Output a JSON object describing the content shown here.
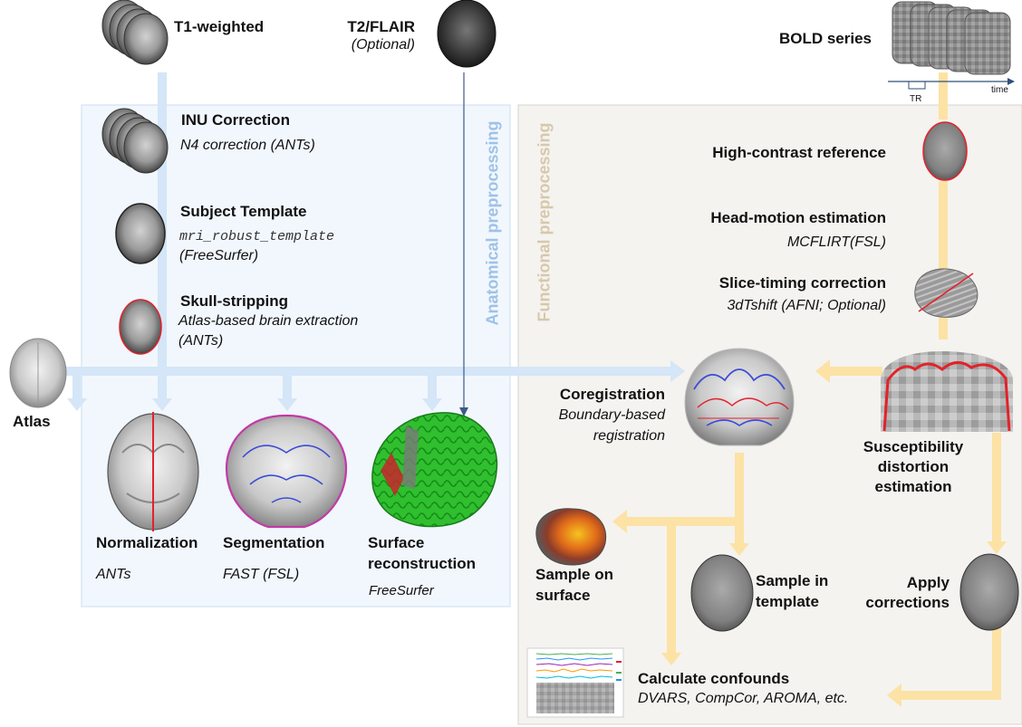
{
  "colors": {
    "anat_panel_fill": "#f1f7fd",
    "anat_panel_border": "#d3e3f4",
    "func_panel_fill": "#f4f3f0",
    "func_panel_border": "#dcdad4",
    "anat_arrow": "#d4e6f7",
    "anat_text": "#9ec2e6",
    "func_arrow": "#fde2a5",
    "func_text": "#d7c8aa",
    "mask_outline": "#e3222a",
    "wm_outline": "#3b4cd6",
    "surface_green": "#2fbf2f"
  },
  "inputs": {
    "t1_title": "T1-weighted",
    "t2_title": "T2/FLAIR",
    "t2_sub": "(Optional)",
    "bold_title": "BOLD series",
    "tr_label": "TR",
    "time_label": "time",
    "atlas_title": "Atlas"
  },
  "anatomical": {
    "panel_title": "Anatomical preprocessing",
    "inu_title": "INU Correction",
    "inu_sub": "N4 correction (ANTs)",
    "template_title": "Subject Template",
    "template_cmd": "mri_robust_template",
    "template_sub": "(FreeSurfer)",
    "skull_title": "Skull-stripping",
    "skull_sub1": "Atlas-based brain extraction",
    "skull_sub2": "(ANTs)",
    "norm_title": "Normalization",
    "norm_sub": "ANTs",
    "seg_title": "Segmentation",
    "seg_sub": "FAST (FSL)",
    "surf_title1": "Surface",
    "surf_title2": "reconstruction",
    "surf_sub": "FreeSurfer"
  },
  "functional": {
    "panel_title": "Functional preprocessing",
    "ref_title": "High-contrast reference",
    "hmc_title": "Head-motion estimation",
    "hmc_sub": "MCFLIRT(FSL)",
    "stc_title": "Slice-timing correction",
    "stc_sub": "3dTshift (AFNI; Optional)",
    "coreg_title": "Coregistration",
    "coreg_sub1": "Boundary-based",
    "coreg_sub2": "registration",
    "sdc_title1": "Susceptibility",
    "sdc_title2": "distortion",
    "sdc_title3": "estimation",
    "surf_title1": "Sample on",
    "surf_title2": "surface",
    "tpl_title1": "Sample in",
    "tpl_title2": "template",
    "apply_title1": "Apply",
    "apply_title2": "corrections",
    "conf_title": "Calculate confounds",
    "conf_sub": "DVARS, CompCor, AROMA, etc."
  }
}
